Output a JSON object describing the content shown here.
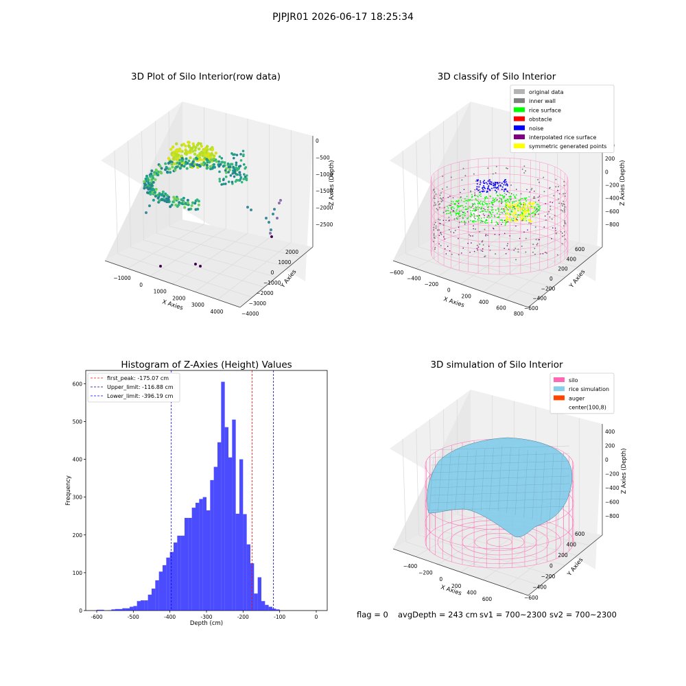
{
  "suptitle": "PJPJR01 2026-06-17 18:25:34",
  "status": {
    "flag": "flag = 0",
    "avg_depth": "avgDepth = 243 cm",
    "sv1": "sv1 = 700~2300",
    "sv2": "sv2 = 700~2300"
  },
  "panels": {
    "raw": {
      "title": "3D Plot of Silo Interior(row data)",
      "xlabel": "X Axies",
      "ylabel": "Y Axies",
      "zlabel": "Z Axies (Depth)",
      "xticks": [
        "−1000",
        "0",
        "1000",
        "2000",
        "3000",
        "4000"
      ],
      "yticks": [
        "−4000",
        "−3000",
        "−2000",
        "−1000",
        "0",
        "1000",
        "2000"
      ],
      "zticks": [
        "0",
        "−500",
        "−1000",
        "−1500",
        "−2000",
        "−2500"
      ]
    },
    "classify": {
      "title": "3D classify of Silo Interior",
      "xlabel": "X Axies",
      "ylabel": "Y Axies",
      "zlabel": "Z Axies (Depth)",
      "xticks": [
        "−600",
        "−400",
        "−200",
        "0",
        "200",
        "400",
        "600",
        "800"
      ],
      "yticks": [
        "−600",
        "−400",
        "−200",
        "0",
        "200",
        "400",
        "600"
      ],
      "zticks": [
        "400",
        "200",
        "0",
        "−200",
        "−400",
        "−600",
        "−800"
      ],
      "legend": [
        {
          "label": "original data",
          "color": "#b4b4b4"
        },
        {
          "label": "inner wall",
          "color": "#808080"
        },
        {
          "label": "rice surface",
          "color": "#00ff00"
        },
        {
          "label": "obstacle",
          "color": "#ff0000"
        },
        {
          "label": "noise",
          "color": "#0000ff"
        },
        {
          "label": "interpolated rice surface",
          "color": "#800080"
        },
        {
          "label": "symmetric generated points",
          "color": "#ffff00"
        }
      ]
    },
    "simulation": {
      "title": "3D simulation of Silo Interior",
      "xlabel": "X Axies",
      "ylabel": "Y Axies",
      "zlabel": "Z Axies (Depth)",
      "xticks": [
        "−400",
        "−200",
        "0",
        "200",
        "400",
        "600"
      ],
      "yticks": [
        "−600",
        "−400",
        "−200",
        "0",
        "200",
        "400",
        "600"
      ],
      "zticks": [
        "400",
        "200",
        "0",
        "−200",
        "−400",
        "−600",
        "−800"
      ],
      "legend": [
        {
          "label": "silo",
          "color": "#ff69b4"
        },
        {
          "label": "rice simulation",
          "color": "#87ceeb"
        },
        {
          "label": "auger",
          "color": "#ff4500"
        },
        {
          "label": "center(100,8)",
          "color": ""
        }
      ]
    }
  },
  "chart_data": [
    {
      "type": "bar",
      "title": "Histogram of Z-Axies (Height) Values",
      "xlabel": "Depth (cm)",
      "ylabel": "Frequency",
      "xlim": [
        -630,
        30
      ],
      "ylim": [
        0,
        635
      ],
      "bin_start": -600,
      "bin_width": 10,
      "xticks": [
        -600,
        -500,
        -400,
        -300,
        -200,
        -100,
        0
      ],
      "yticks": [
        0,
        100,
        200,
        300,
        400,
        500,
        600
      ],
      "bar_color": "#0000ff",
      "values": [
        2,
        2,
        0,
        1,
        3,
        4,
        4,
        6,
        6,
        10,
        12,
        25,
        27,
        27,
        42,
        58,
        80,
        103,
        120,
        140,
        155,
        180,
        198,
        198,
        245,
        245,
        272,
        285,
        295,
        300,
        265,
        345,
        380,
        445,
        605,
        485,
        405,
        505,
        256,
        400,
        255,
        175,
        125,
        45,
        88,
        25,
        15,
        10,
        5,
        3
      ],
      "vlines": [
        {
          "label": "first_peak: -175.07 cm",
          "x": -175.07,
          "color": "#ff0000"
        },
        {
          "label": "Upper_limit: -116.88 cm",
          "x": -116.88,
          "color": "#00008b"
        },
        {
          "label": "Lower_limit: -396.19 cm",
          "x": -396.19,
          "color": "#0000ff"
        }
      ],
      "legend_position": "top-left"
    }
  ]
}
